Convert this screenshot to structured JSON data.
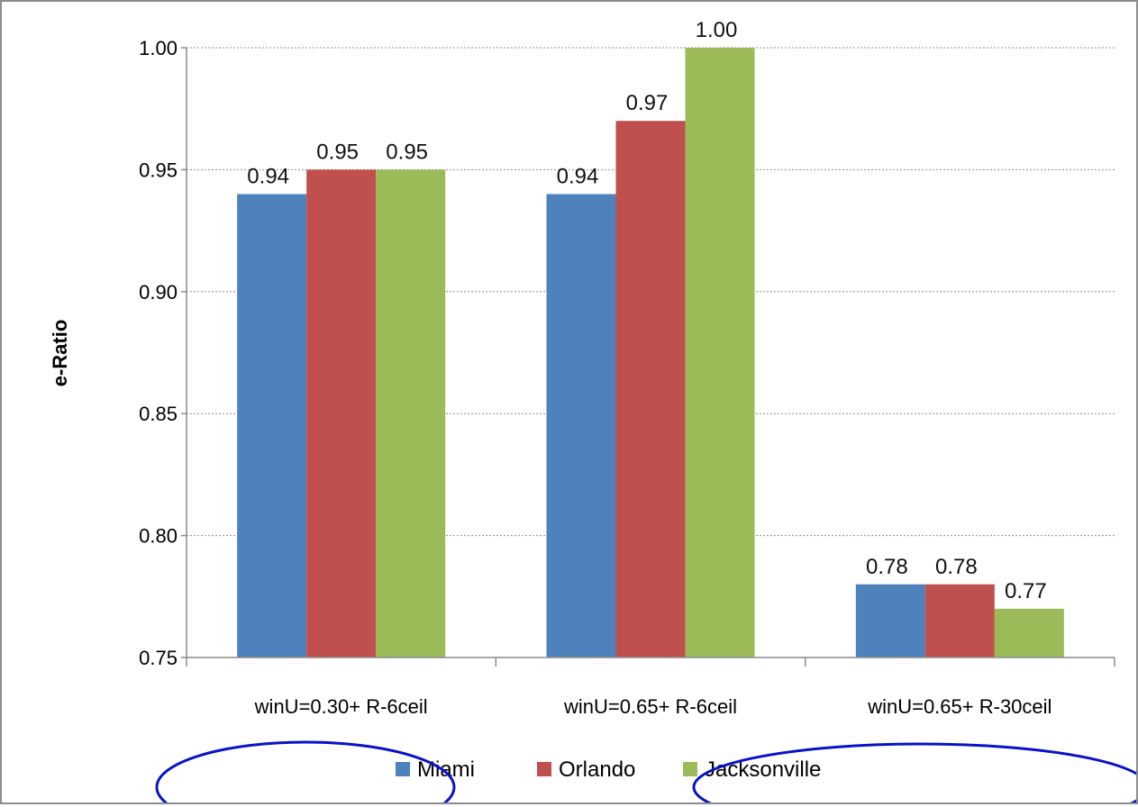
{
  "chart_data": {
    "type": "bar",
    "title": "",
    "xlabel": "",
    "ylabel": "e-Ratio",
    "ylim": [
      0.75,
      1.0
    ],
    "yticks": [
      "0.75",
      "0.80",
      "0.85",
      "0.90",
      "0.95",
      "1.00"
    ],
    "categories": [
      "winU=0.30+ R-6ceil",
      "winU=0.65+ R-6ceil",
      "winU=0.65+ R-30ceil"
    ],
    "series": [
      {
        "name": "Miami",
        "color": "#4f81bd",
        "values": [
          0.94,
          0.94,
          0.78
        ],
        "labels": [
          "0.94",
          "0.94",
          "0.78"
        ]
      },
      {
        "name": "Orlando",
        "color": "#c0504d",
        "values": [
          0.95,
          0.97,
          0.78
        ],
        "labels": [
          "0.95",
          "0.97",
          "0.78"
        ]
      },
      {
        "name": "Jacksonville",
        "color": "#9bbb59",
        "values": [
          0.95,
          1.0,
          0.77
        ],
        "labels": [
          "0.95",
          "1.00",
          "0.77"
        ]
      }
    ],
    "grid": true,
    "legend_position": "bottom",
    "annotations": [
      {
        "type": "hand-drawn-ellipse",
        "color": "#0a12c8"
      },
      {
        "type": "hand-drawn-ellipse",
        "color": "#0a12c8"
      }
    ]
  }
}
